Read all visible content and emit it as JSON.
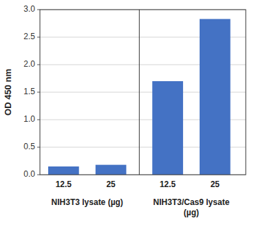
{
  "chart_data": {
    "type": "bar",
    "ylabel": "OD 450 nm",
    "categories": [
      "12.5",
      "25",
      "12.5",
      "25"
    ],
    "values": [
      0.15,
      0.18,
      1.7,
      2.83
    ],
    "group_labels": [
      "NIH3T3 lysate (µg)",
      "NIH3T3/Cas9 lysate\n(µg)"
    ],
    "color": "#4472C4",
    "ylim": [
      0,
      3.0
    ],
    "yticks": [
      {
        "value": 0,
        "label": "0.0"
      },
      0.5,
      {
        "value": 1.0,
        "label": "1.0"
      },
      1.5,
      {
        "value": 2.0,
        "label": "2.0"
      },
      2.5,
      {
        "value": 3.0,
        "label": "3.0"
      }
    ],
    "grid": true
  }
}
